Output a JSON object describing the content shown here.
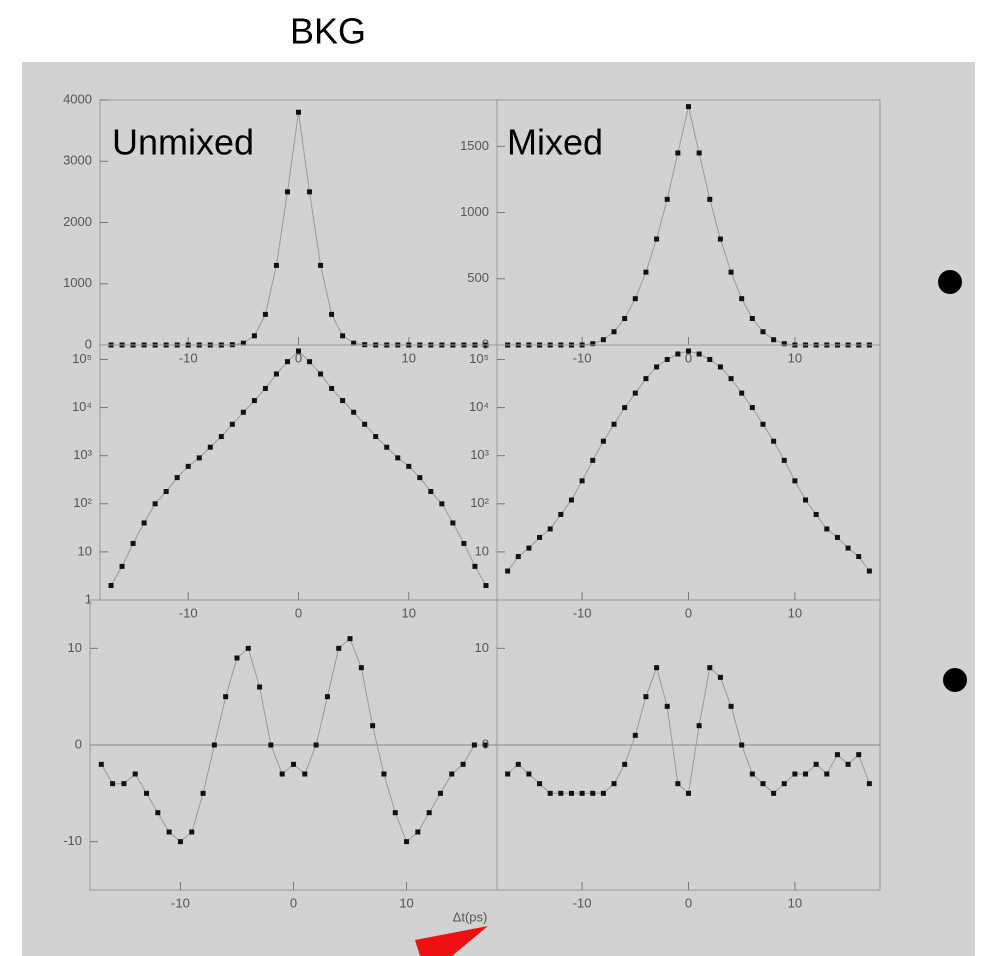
{
  "title": "BKG",
  "chart_data": [
    {
      "type": "scatter",
      "title": "Unmixed",
      "x": [
        -17,
        -16,
        -15,
        -14,
        -13,
        -12,
        -11,
        -10,
        -9,
        -8,
        -7,
        -6,
        -5,
        -4,
        -3,
        -2,
        -1,
        0,
        1,
        2,
        3,
        4,
        5,
        6,
        7,
        8,
        9,
        10,
        11,
        12,
        13,
        14,
        15,
        16,
        17
      ],
      "values": [
        0,
        0,
        0,
        0,
        0,
        0,
        0,
        0,
        0,
        0,
        0,
        5,
        30,
        150,
        500,
        1300,
        2500,
        3800,
        2500,
        1300,
        500,
        150,
        30,
        5,
        0,
        0,
        0,
        0,
        0,
        0,
        0,
        0,
        0,
        0,
        0
      ],
      "xlim": [
        -18,
        18
      ],
      "ylim": [
        0,
        4000
      ],
      "xticks": [
        -10,
        0,
        10
      ],
      "yticks": [
        0,
        1000,
        2000,
        3000,
        4000
      ],
      "color": "#111111"
    },
    {
      "type": "scatter",
      "title": "Mixed",
      "x": [
        -17,
        -16,
        -15,
        -14,
        -13,
        -12,
        -11,
        -10,
        -9,
        -8,
        -7,
        -6,
        -5,
        -4,
        -3,
        -2,
        -1,
        0,
        1,
        2,
        3,
        4,
        5,
        6,
        7,
        8,
        9,
        10,
        11,
        12,
        13,
        14,
        15,
        16,
        17
      ],
      "values": [
        0,
        0,
        0,
        0,
        0,
        0,
        0,
        0,
        10,
        40,
        100,
        200,
        350,
        550,
        800,
        1100,
        1450,
        1800,
        1450,
        1100,
        800,
        550,
        350,
        200,
        100,
        40,
        10,
        0,
        0,
        0,
        0,
        0,
        0,
        0,
        0
      ],
      "xlim": [
        -18,
        18
      ],
      "ylim": [
        0,
        1850
      ],
      "xticks": [
        -10,
        0,
        10
      ],
      "yticks": [
        0,
        500,
        1000,
        1500
      ],
      "color": "#111111"
    },
    {
      "type": "scatter",
      "yscale": "log",
      "x": [
        -17,
        -16,
        -15,
        -14,
        -13,
        -12,
        -11,
        -10,
        -9,
        -8,
        -7,
        -6,
        -5,
        -4,
        -3,
        -2,
        -1,
        0,
        1,
        2,
        3,
        4,
        5,
        6,
        7,
        8,
        9,
        10,
        11,
        12,
        13,
        14,
        15,
        16,
        17
      ],
      "values": [
        2,
        5,
        15,
        40,
        100,
        180,
        350,
        600,
        900,
        1500,
        2500,
        4500,
        8000,
        14000,
        25000,
        50000,
        90000,
        150000,
        90000,
        50000,
        25000,
        14000,
        8000,
        4500,
        2500,
        1500,
        900,
        600,
        350,
        180,
        100,
        40,
        15,
        5,
        2
      ],
      "xlim": [
        -18,
        18
      ],
      "ylim": [
        1,
        200000
      ],
      "xticks": [
        -10,
        0,
        10
      ],
      "yticks": [
        1,
        10,
        {
          "value": 100,
          "label": "10²"
        },
        {
          "value": 1000,
          "label": "10³"
        },
        {
          "value": 10000,
          "label": "10⁴"
        },
        {
          "value": 100000,
          "label": "10⁵"
        }
      ],
      "color": "#111111"
    },
    {
      "type": "scatter",
      "yscale": "log",
      "x": [
        -17,
        -16,
        -15,
        -14,
        -13,
        -12,
        -11,
        -10,
        -9,
        -8,
        -7,
        -6,
        -5,
        -4,
        -3,
        -2,
        -1,
        0,
        1,
        2,
        3,
        4,
        5,
        6,
        7,
        8,
        9,
        10,
        11,
        12,
        13,
        14,
        15,
        16,
        17
      ],
      "values": [
        4,
        8,
        12,
        20,
        30,
        60,
        120,
        300,
        800,
        2000,
        4500,
        10000,
        20000,
        40000,
        70000,
        100000,
        130000,
        150000,
        130000,
        100000,
        70000,
        40000,
        20000,
        10000,
        4500,
        2000,
        800,
        300,
        120,
        60,
        30,
        20,
        12,
        8,
        4
      ],
      "xlim": [
        -18,
        18
      ],
      "ylim": [
        1,
        200000
      ],
      "xticks": [
        -10,
        0,
        10
      ],
      "yticks": [
        10,
        {
          "value": 100,
          "label": "10²"
        },
        {
          "value": 1000,
          "label": "10³"
        },
        {
          "value": 10000,
          "label": "10⁴"
        },
        {
          "value": 100000,
          "label": "10⁵"
        }
      ],
      "color": "#111111"
    },
    {
      "type": "scatter",
      "xlabel": "Δt(ps)",
      "x": [
        -17,
        -16,
        -15,
        -14,
        -13,
        -12,
        -11,
        -10,
        -9,
        -8,
        -7,
        -6,
        -5,
        -4,
        -3,
        -2,
        -1,
        0,
        1,
        2,
        3,
        4,
        5,
        6,
        7,
        8,
        9,
        10,
        11,
        12,
        13,
        14,
        15,
        16,
        17
      ],
      "values": [
        -2,
        -4,
        -4,
        -3,
        -5,
        -7,
        -9,
        -10,
        -9,
        -5,
        0,
        5,
        9,
        10,
        6,
        0,
        -3,
        -2,
        -3,
        0,
        5,
        10,
        11,
        8,
        2,
        -3,
        -7,
        -10,
        -9,
        -7,
        -5,
        -3,
        -2,
        0,
        0
      ],
      "xlim": [
        -18,
        18
      ],
      "ylim": [
        -15,
        15
      ],
      "xticks": [
        -10,
        0,
        10
      ],
      "yticks": [
        -10,
        0,
        10
      ],
      "color": "#111111"
    },
    {
      "type": "scatter",
      "x": [
        -17,
        -16,
        -15,
        -14,
        -13,
        -12,
        -11,
        -10,
        -9,
        -8,
        -7,
        -6,
        -5,
        -4,
        -3,
        -2,
        -1,
        0,
        1,
        2,
        3,
        4,
        5,
        6,
        7,
        8,
        9,
        10,
        11,
        12,
        13,
        14,
        15,
        16,
        17
      ],
      "values": [
        -3,
        -2,
        -3,
        -4,
        -5,
        -5,
        -5,
        -5,
        -5,
        -5,
        -4,
        -2,
        1,
        5,
        8,
        4,
        -4,
        -5,
        2,
        8,
        7,
        4,
        0,
        -3,
        -4,
        -5,
        -4,
        -3,
        -3,
        -2,
        -3,
        -1,
        -2,
        -1,
        -4
      ],
      "xlim": [
        -18,
        18
      ],
      "ylim": [
        -15,
        15
      ],
      "xticks": [
        -10,
        0,
        10
      ],
      "yticks": [
        0,
        10
      ],
      "color": "#111111"
    }
  ]
}
